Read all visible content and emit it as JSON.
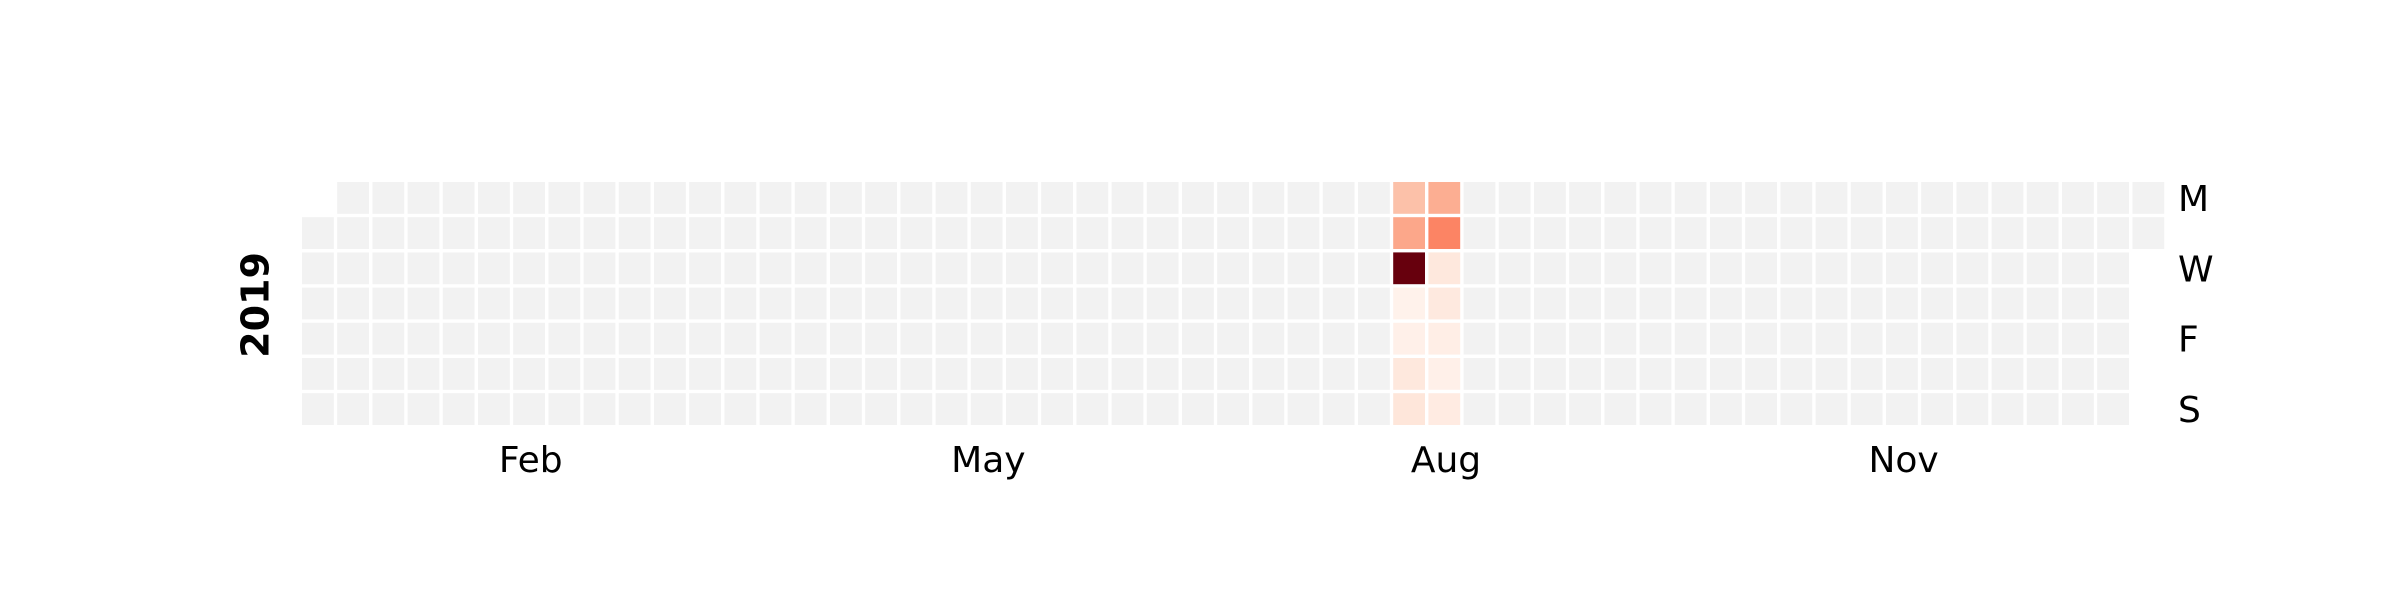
{
  "chart_data": {
    "type": "heatmap",
    "title": "",
    "year_label": "2019",
    "first_day_offset": 1,
    "num_days": 365,
    "weeks": 53,
    "xlabel": "",
    "ylabel": "",
    "x_tick_labels": [
      {
        "label": "Feb",
        "week": 6.5
      },
      {
        "label": "May",
        "week": 19.5
      },
      {
        "label": "Aug",
        "week": 32.5
      },
      {
        "label": "Nov",
        "week": 45.5
      }
    ],
    "y_tick_labels": [
      {
        "label": "M",
        "day": 0
      },
      {
        "label": "W",
        "day": 2
      },
      {
        "label": "F",
        "day": 4
      },
      {
        "label": "S",
        "day": 6
      }
    ],
    "empty_color": "#f2f2f2",
    "colormap": "Reds",
    "color_range": [
      0,
      10
    ],
    "cell_color": "#f2f2f2",
    "values": [
      {
        "date": "2019-08-05",
        "value": 2.3
      },
      {
        "date": "2019-08-06",
        "value": 3.1
      },
      {
        "date": "2019-08-07",
        "value": 10
      },
      {
        "date": "2019-08-08",
        "value": 0.2
      },
      {
        "date": "2019-08-09",
        "value": 0.3
      },
      {
        "date": "2019-08-10",
        "value": 0.8
      },
      {
        "date": "2019-08-11",
        "value": 0.9
      },
      {
        "date": "2019-08-12",
        "value": 2.9
      },
      {
        "date": "2019-08-13",
        "value": 4.2
      },
      {
        "date": "2019-08-14",
        "value": 0.8
      },
      {
        "date": "2019-08-15",
        "value": 0.7
      },
      {
        "date": "2019-08-16",
        "value": 0.4
      },
      {
        "date": "2019-08-17",
        "value": 0.3
      },
      {
        "date": "2019-08-18",
        "value": 0.6
      }
    ]
  }
}
